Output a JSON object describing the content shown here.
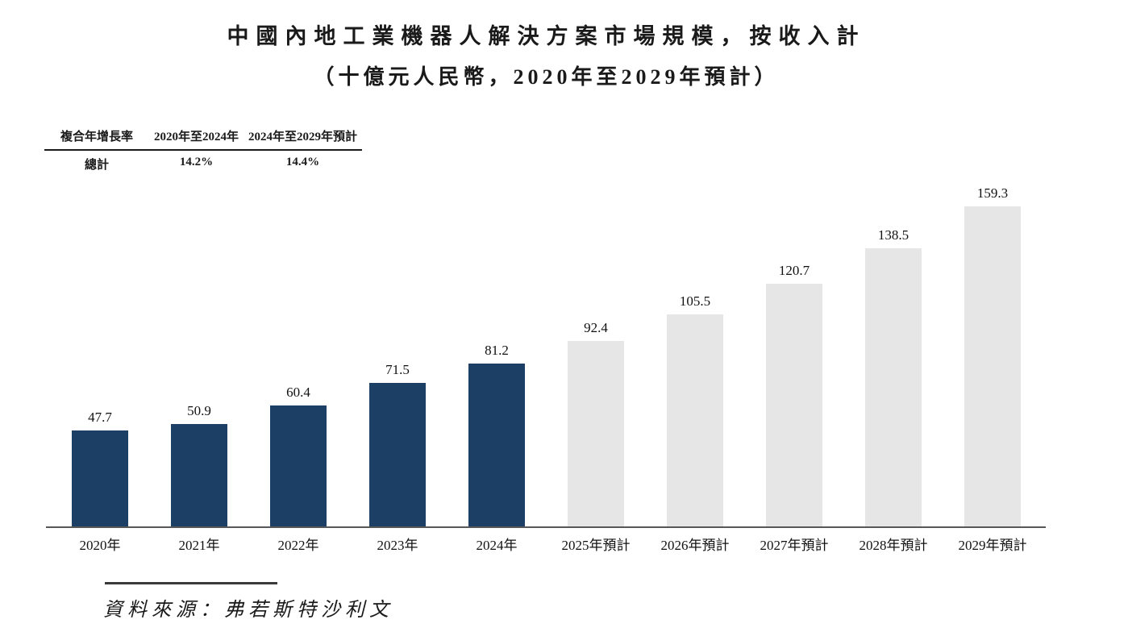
{
  "title": {
    "line1": "中國內地工業機器人解決方案市場規模，按收入計",
    "line2": "（十億元人民幣，2020年至2029年預計）"
  },
  "cagr_table": {
    "header": [
      "複合年增長率",
      "2020年至2024年",
      "2024年至2029年預計"
    ],
    "rows": [
      [
        "總計",
        "14.2%",
        "14.4%"
      ]
    ]
  },
  "chart_data": {
    "type": "bar",
    "title": "中國內地工業機器人解決方案市場規模，按收入計",
    "subtitle": "（十億元人民幣，2020年至2029年預計）",
    "categories": [
      "2020年",
      "2021年",
      "2022年",
      "2023年",
      "2024年",
      "2025年預計",
      "2026年預計",
      "2027年預計",
      "2028年預計",
      "2029年預計"
    ],
    "values": [
      47.7,
      50.9,
      60.4,
      71.5,
      81.2,
      92.4,
      105.5,
      120.7,
      138.5,
      159.3
    ],
    "value_labels": [
      "47.7",
      "50.9",
      "60.4",
      "71.5",
      "81.2",
      "92.4",
      "105.5",
      "120.7",
      "138.5",
      "159.3"
    ],
    "xlabel": "",
    "ylabel": "",
    "ylim": [
      0,
      165
    ],
    "grid": false,
    "legend": "none",
    "historical_count": 5,
    "colors": {
      "historical_bar": "#1c4065",
      "forecast_bar": "#e6e6e6",
      "axis_line": "#57585a"
    }
  },
  "source": {
    "label": "資料來源：弗若斯特沙利文"
  }
}
